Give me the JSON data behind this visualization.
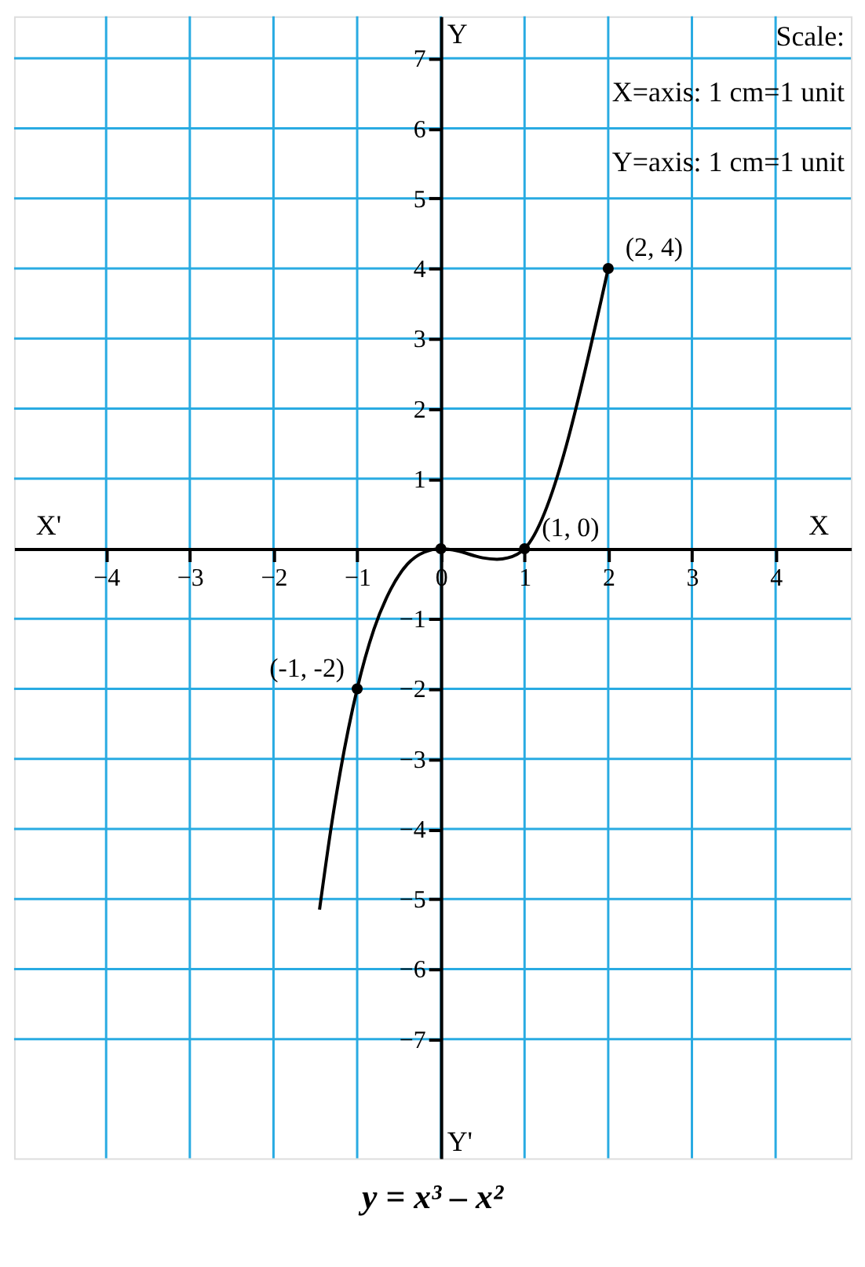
{
  "chart_data": {
    "type": "line",
    "title": "y = x³ – x²",
    "xlim": [
      -5.1,
      4.9
    ],
    "ylim": [
      -8.7,
      7.6
    ],
    "xticks": [
      -4,
      -3,
      -2,
      -1,
      0,
      1,
      2,
      3,
      4
    ],
    "yticks": [
      -7,
      -6,
      -5,
      -4,
      -3,
      -2,
      -1,
      1,
      2,
      3,
      4,
      5,
      6,
      7
    ],
    "grid": true,
    "series": [
      {
        "color": "#000000",
        "marker": "none",
        "x": [
          -1.45,
          -1.3,
          -1.2,
          -1,
          -0.8,
          -0.6,
          -0.4,
          -0.2,
          0,
          0.2,
          0.4,
          0.5,
          0.67,
          0.8,
          1,
          2
        ],
        "values": [
          -5.15,
          -3.89,
          -3.17,
          -2,
          -1.15,
          -0.58,
          -0.22,
          -0.05,
          0,
          -0.03,
          -0.1,
          -0.13,
          -0.15,
          -0.13,
          0,
          4
        ]
      },
      {
        "type": "scatter",
        "color": "#000000",
        "marker": "circle",
        "x": [
          -1,
          0,
          1,
          2
        ],
        "values": [
          -2,
          0,
          0,
          4
        ]
      }
    ],
    "annotations": [
      {
        "text": "(2, 4)",
        "x": 2,
        "y": 4
      },
      {
        "text": "(1, 0)",
        "x": 1,
        "y": 0
      },
      {
        "text": "(-1, -2)",
        "x": -1,
        "y": -2
      },
      "X'",
      "X",
      "Y",
      "Y'",
      "Scale:",
      "X=axis: 1 cm=1 unit",
      "Y=axis: 1 cm=1 unit"
    ]
  }
}
